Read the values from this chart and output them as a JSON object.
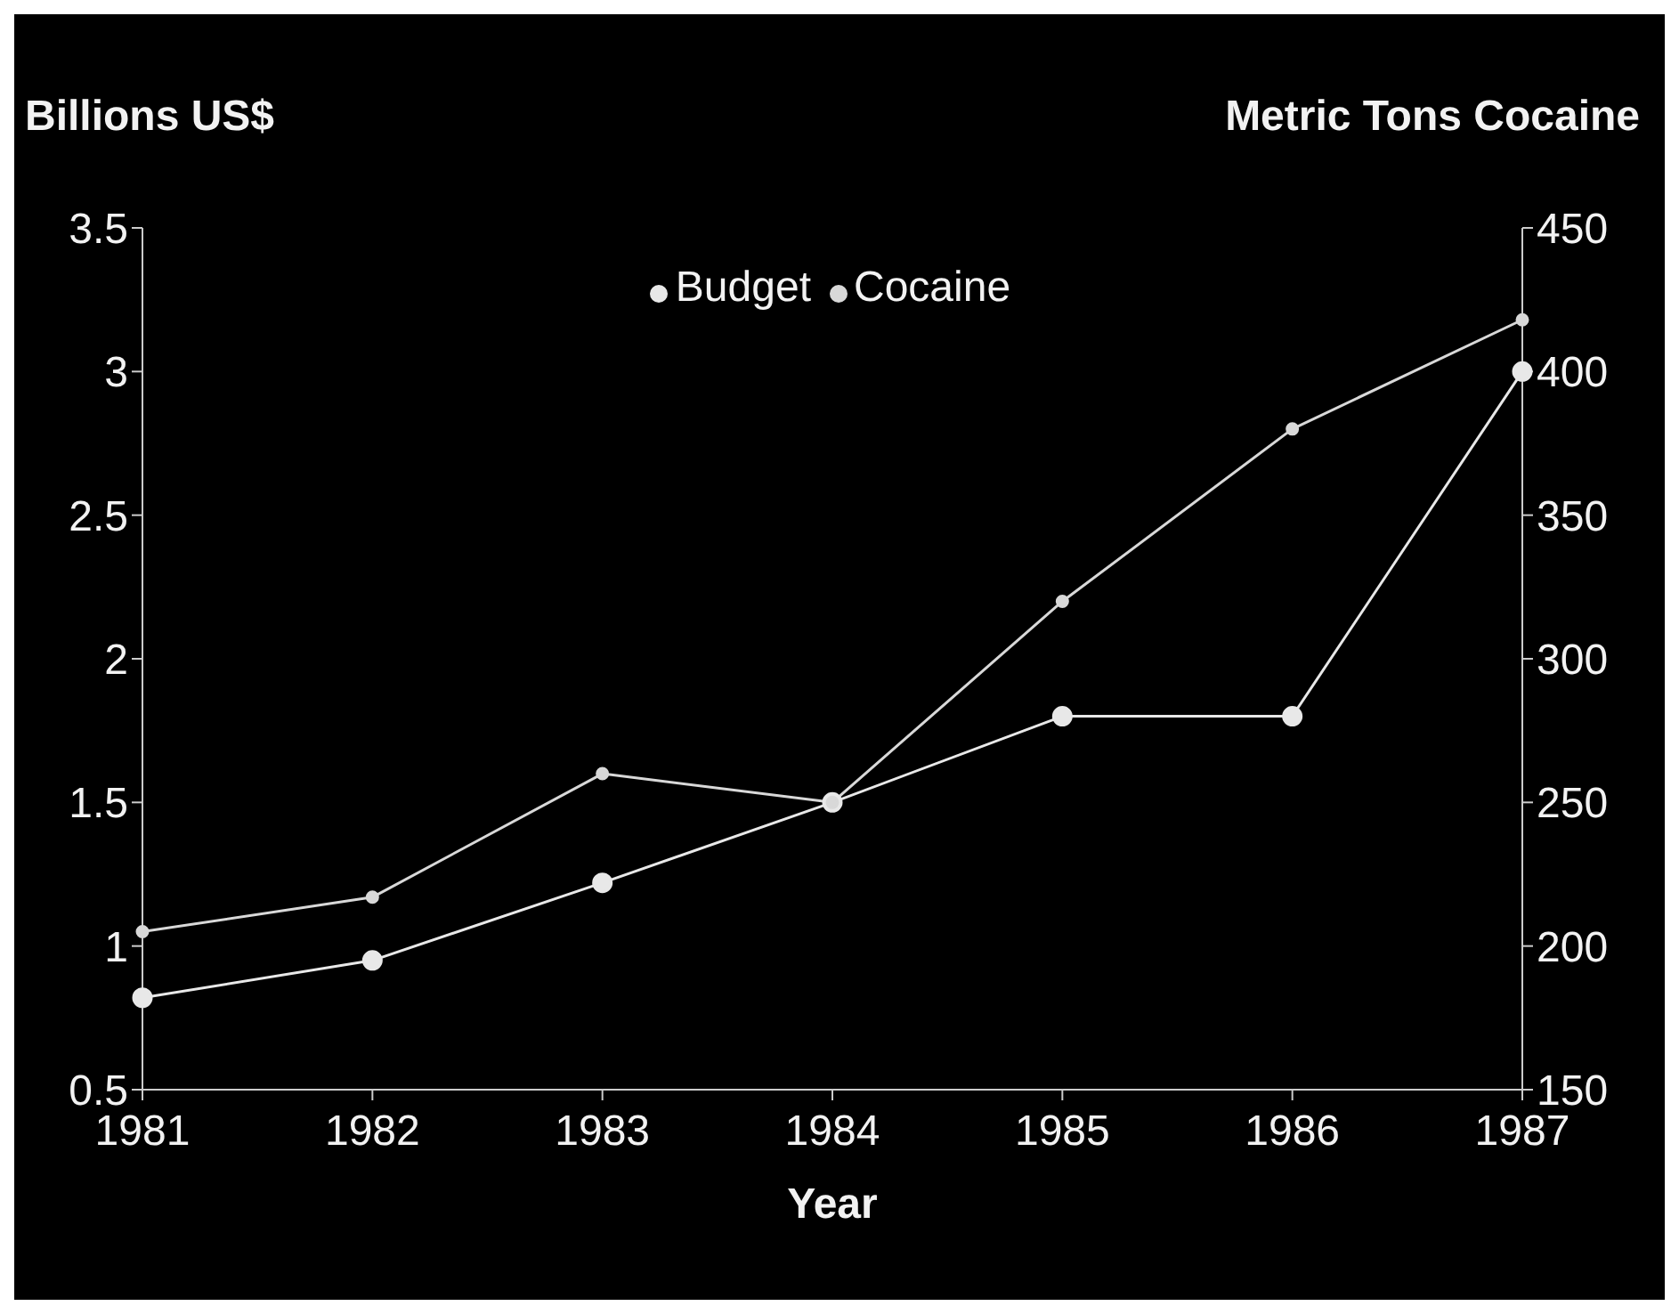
{
  "chart_data": {
    "type": "line",
    "xlabel": "Year",
    "ylabel": "Billions US$",
    "y2label": "Metric Tons Cocaine",
    "categories": [
      "1981",
      "1982",
      "1983",
      "1984",
      "1985",
      "1986",
      "1987"
    ],
    "series": [
      {
        "name": "Budget",
        "color": "#e8e8e8",
        "values": [
          0.82,
          0.95,
          1.22,
          1.5,
          1.8,
          1.8,
          3.0
        ]
      },
      {
        "name": "Cocaine",
        "color": "#d8d8d8",
        "axis": "y2",
        "values": [
          205,
          217,
          260,
          250,
          320,
          380,
          418
        ]
      }
    ],
    "ylim": [
      0.5,
      3.5
    ],
    "yticks": [
      0.5,
      1,
      1.5,
      2,
      2.5,
      3,
      3.5
    ],
    "y2lim": [
      150,
      450
    ],
    "y2ticks": [
      150,
      200,
      250,
      300,
      350,
      400,
      450
    ],
    "grid": false,
    "legend": "top",
    "marker": "circle",
    "line_style": "solid"
  }
}
